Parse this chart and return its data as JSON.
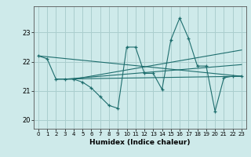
{
  "xlabel": "Humidex (Indice chaleur)",
  "ylabel": "",
  "bg_color": "#ceeaea",
  "grid_color": "#aacece",
  "line_color": "#1e6e6e",
  "xlim": [
    -0.5,
    23.5
  ],
  "ylim": [
    19.7,
    23.9
  ],
  "yticks": [
    20,
    21,
    22,
    23
  ],
  "xticks": [
    0,
    1,
    2,
    3,
    4,
    5,
    6,
    7,
    8,
    9,
    10,
    11,
    12,
    13,
    14,
    15,
    16,
    17,
    18,
    19,
    20,
    21,
    22,
    23
  ],
  "series": [
    [
      0,
      22.2
    ],
    [
      1,
      22.1
    ],
    [
      2,
      21.4
    ],
    [
      3,
      21.4
    ],
    [
      4,
      21.4
    ],
    [
      5,
      21.3
    ],
    [
      6,
      21.1
    ],
    [
      7,
      20.8
    ],
    [
      8,
      20.5
    ],
    [
      9,
      20.4
    ],
    [
      10,
      22.5
    ],
    [
      11,
      22.5
    ],
    [
      12,
      21.6
    ],
    [
      13,
      21.6
    ],
    [
      14,
      21.05
    ],
    [
      15,
      22.75
    ],
    [
      16,
      23.5
    ],
    [
      17,
      22.8
    ],
    [
      18,
      21.85
    ],
    [
      19,
      21.85
    ],
    [
      20,
      20.3
    ],
    [
      21,
      21.45
    ],
    [
      22,
      21.5
    ],
    [
      23,
      21.5
    ]
  ],
  "trend_series": [
    [
      [
        0,
        22.2
      ],
      [
        23,
        21.5
      ]
    ],
    [
      [
        2,
        21.4
      ],
      [
        23,
        21.5
      ]
    ],
    [
      [
        3,
        21.4
      ],
      [
        23,
        21.9
      ]
    ],
    [
      [
        4,
        21.4
      ],
      [
        23,
        22.4
      ]
    ]
  ]
}
